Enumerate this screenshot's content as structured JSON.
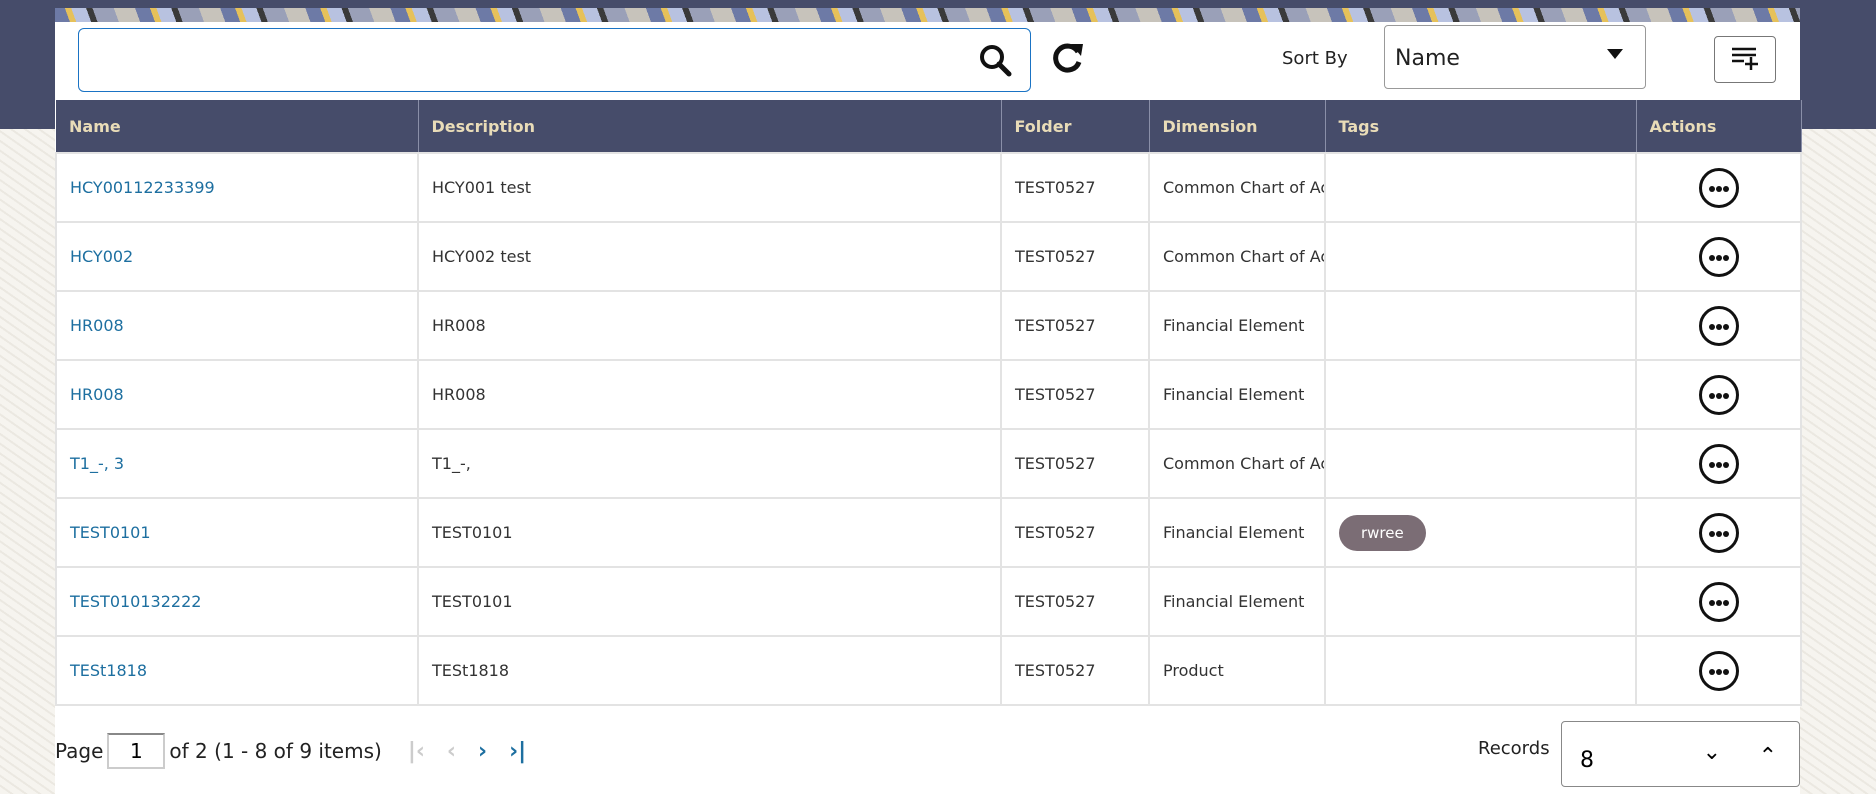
{
  "toolbar": {
    "search_value": "",
    "sort_label": "Sort By",
    "sort_value": "Name"
  },
  "table": {
    "columns": [
      "Name",
      "Description",
      "Folder",
      "Dimension",
      "Tags",
      "Actions"
    ],
    "rows": [
      {
        "name": "HCY00112233399",
        "description": "HCY001 test",
        "folder": "TEST0527",
        "dimension": "Common Chart of Ac",
        "tags": ""
      },
      {
        "name": "HCY002",
        "description": "HCY002 test",
        "folder": "TEST0527",
        "dimension": "Common Chart of Ac",
        "tags": ""
      },
      {
        "name": "HR008",
        "description": "HR008",
        "folder": "TEST0527",
        "dimension": "Financial Element",
        "tags": ""
      },
      {
        "name": "HR008",
        "description": "HR008",
        "folder": "TEST0527",
        "dimension": "Financial Element",
        "tags": ""
      },
      {
        "name": "T1_-, 3",
        "description": "T1_-,",
        "folder": "TEST0527",
        "dimension": "Common Chart of Ac",
        "tags": ""
      },
      {
        "name": "TEST0101",
        "description": "TEST0101",
        "folder": "TEST0527",
        "dimension": "Financial Element",
        "tags": "rwree"
      },
      {
        "name": "TEST010132222",
        "description": "TEST0101",
        "folder": "TEST0527",
        "dimension": "Financial Element",
        "tags": ""
      },
      {
        "name": "TESt1818",
        "description": "TESt1818",
        "folder": "TEST0527",
        "dimension": "Product",
        "tags": ""
      }
    ]
  },
  "pager": {
    "page_label": "Page",
    "page": "1",
    "summary": "of 2 (1 - 8 of 9 items)",
    "records_label": "Records",
    "records_value": "8"
  },
  "colors": {
    "header_bg": "#464c6a",
    "header_text": "#e9dcb8",
    "link": "#1d6fa0",
    "tag_bg": "#7b6d75"
  }
}
